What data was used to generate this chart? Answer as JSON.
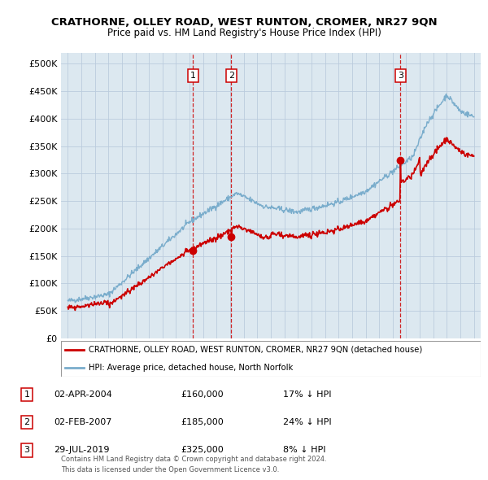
{
  "title": "CRATHORNE, OLLEY ROAD, WEST RUNTON, CROMER, NR27 9QN",
  "subtitle": "Price paid vs. HM Land Registry's House Price Index (HPI)",
  "legend_line1": "CRATHORNE, OLLEY ROAD, WEST RUNTON, CROMER, NR27 9QN (detached house)",
  "legend_line2": "HPI: Average price, detached house, North Norfolk",
  "footer1": "Contains HM Land Registry data © Crown copyright and database right 2024.",
  "footer2": "This data is licensed under the Open Government Licence v3.0.",
  "transactions": [
    {
      "num": 1,
      "date": "02-APR-2004",
      "price": 160000,
      "pct": "17%",
      "dir": "↓",
      "x_year": 2004.25
    },
    {
      "num": 2,
      "date": "02-FEB-2007",
      "price": 185000,
      "pct": "24%",
      "dir": "↓",
      "x_year": 2007.08
    },
    {
      "num": 3,
      "date": "29-JUL-2019",
      "price": 325000,
      "pct": "8%",
      "dir": "↓",
      "x_year": 2019.58
    }
  ],
  "ylim": [
    0,
    520000
  ],
  "yticks": [
    0,
    50000,
    100000,
    150000,
    200000,
    250000,
    300000,
    350000,
    400000,
    450000,
    500000
  ],
  "xlim": [
    1994.5,
    2025.5
  ],
  "xticks": [
    1995,
    1996,
    1997,
    1998,
    1999,
    2000,
    2001,
    2002,
    2003,
    2004,
    2005,
    2006,
    2007,
    2008,
    2009,
    2010,
    2011,
    2012,
    2013,
    2014,
    2015,
    2016,
    2017,
    2018,
    2019,
    2020,
    2021,
    2022,
    2023,
    2024,
    2025
  ],
  "red_line_color": "#cc0000",
  "blue_line_color": "#7aadcc",
  "background_color": "#ffffff",
  "chart_bg_color": "#dce8f0",
  "grid_color": "#bbccdd",
  "vline_color": "#cc0000"
}
